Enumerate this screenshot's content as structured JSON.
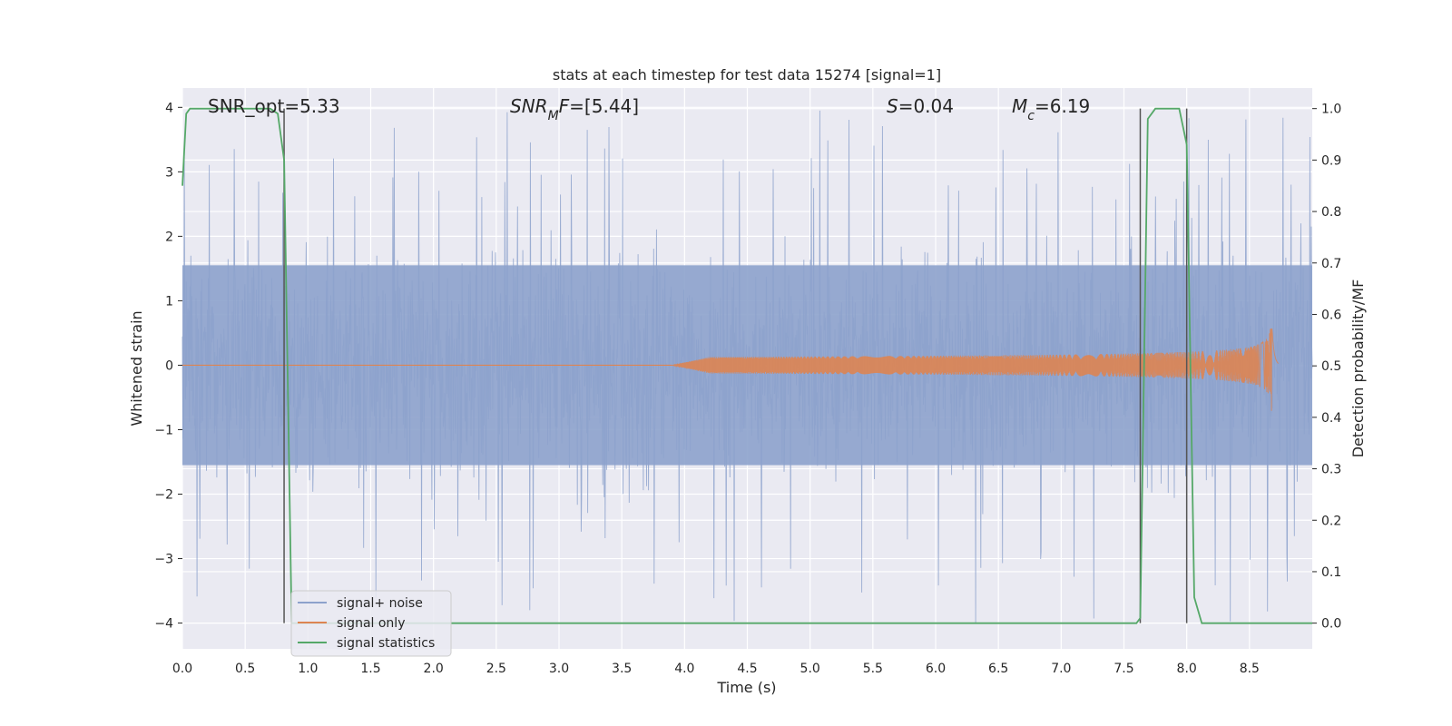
{
  "chart_data": {
    "type": "line",
    "title": "stats at each timestep for test data 15274 [signal=1]",
    "xlabel": "Time (s)",
    "ylabel": "Whitened strain",
    "ylabel_right": "Detection probability/MF",
    "xlim": [
      0.0,
      9.0
    ],
    "ylim": [
      -4.4,
      4.3
    ],
    "ylim_right": [
      -0.05,
      1.04
    ],
    "xticks": [
      "0.0",
      "0.5",
      "1.0",
      "1.5",
      "2.0",
      "2.5",
      "3.0",
      "3.5",
      "4.0",
      "4.5",
      "5.0",
      "5.5",
      "6.0",
      "6.5",
      "7.0",
      "7.5",
      "8.0",
      "8.5"
    ],
    "yticks": [
      "4",
      "3",
      "2",
      "1",
      "0",
      "−1",
      "−2",
      "−3",
      "−4"
    ],
    "yticks_right": [
      "1.0",
      "0.9",
      "0.8",
      "0.7",
      "0.6",
      "0.5",
      "0.4",
      "0.3",
      "0.2",
      "0.1",
      "0.0"
    ],
    "grid": true,
    "legend_position": "lower-left",
    "annotations": [
      {
        "parts": [
          {
            "t": "SNR_opt=5.33",
            "italic": false
          }
        ]
      },
      {
        "parts": [
          {
            "t": "SNR",
            "italic": true
          },
          {
            "t": "M",
            "italic": true,
            "sub": true
          },
          {
            "t": "F",
            "italic": true
          },
          {
            "t": "=[5.44]",
            "italic": false
          }
        ]
      },
      {
        "parts": [
          {
            "t": "S",
            "italic": true
          },
          {
            "t": "=0.04",
            "italic": false
          }
        ]
      },
      {
        "parts": [
          {
            "t": "M",
            "italic": true
          },
          {
            "t": "c",
            "italic": true,
            "sub": true
          },
          {
            "t": "=6.19",
            "italic": false
          }
        ]
      }
    ],
    "vertical_markers_s": [
      0.81,
      7.63,
      8.0
    ],
    "series": [
      {
        "name": "signal+ noise",
        "color": "#8da2cc",
        "kind": "noise",
        "envelope_typical": 1.4,
        "envelope_max": 4.0,
        "x_range": [
          0.0,
          9.0
        ]
      },
      {
        "name": "signal only",
        "color": "#dd8452",
        "kind": "chirp",
        "start_s": 3.9,
        "merger_s": 8.68,
        "peak_amplitude": 0.75
      },
      {
        "name": "signal statistics",
        "color": "#55a868",
        "kind": "step",
        "axis": "right",
        "x": [
          0.0,
          0.03,
          0.06,
          0.09,
          0.15,
          0.3,
          0.5,
          0.7,
          0.76,
          0.81,
          0.87,
          0.95,
          1.2,
          3.0,
          5.0,
          7.0,
          7.5,
          7.6,
          7.63,
          7.69,
          7.75,
          7.9,
          7.94,
          8.0,
          8.06,
          8.12,
          8.3,
          8.5,
          8.6,
          9.0
        ],
        "y": [
          0.85,
          0.99,
          1.0,
          1.0,
          1.0,
          1.0,
          1.0,
          1.0,
          0.99,
          0.9,
          0.0,
          0.0,
          0.0,
          0.0,
          0.0,
          0.0,
          0.0,
          0.0,
          0.01,
          0.98,
          1.0,
          1.0,
          1.0,
          0.93,
          0.05,
          0.0,
          0.0,
          0.0,
          0.0,
          0.0
        ]
      }
    ]
  }
}
